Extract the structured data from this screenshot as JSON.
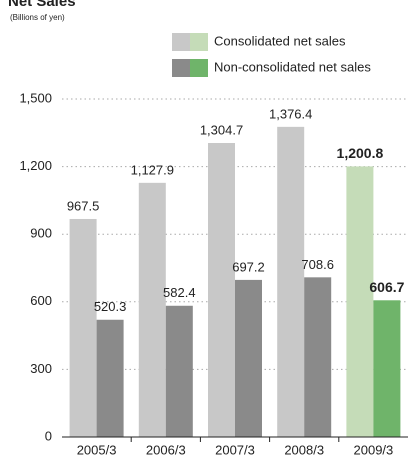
{
  "chart_data": {
    "type": "bar",
    "title": "Net Sales",
    "subtitle": "(Billions of yen)",
    "categories": [
      "2005/3",
      "2006/3",
      "2007/3",
      "2008/3",
      "2009/3"
    ],
    "series": [
      {
        "name": "Consolidated net sales",
        "color": "#c8c8c8",
        "colors": [
          "#c8c8c8",
          "#c8c8c8",
          "#c8c8c8",
          "#c8c8c8",
          "#c5dcb8"
        ],
        "values": [
          967.5,
          1127.9,
          1304.7,
          1376.4,
          1200.8
        ],
        "value_labels": [
          "967.5",
          "1,127.9",
          "1,304.7",
          "1,376.4",
          "1,200.8"
        ]
      },
      {
        "name": "Non-consolidated net sales",
        "color": "#8a8a8a",
        "colors": [
          "#8a8a8a",
          "#8a8a8a",
          "#8a8a8a",
          "#8a8a8a",
          "#6fb46a"
        ],
        "values": [
          520.3,
          582.4,
          697.2,
          708.6,
          606.7
        ],
        "value_labels": [
          "520.3",
          "582.4",
          "697.2",
          "708.6",
          "606.7"
        ]
      }
    ],
    "value_label_bold": [
      false,
      false,
      false,
      false,
      true
    ],
    "ylim": [
      0,
      1500
    ],
    "yticks": [
      0,
      300,
      600,
      900,
      {
        "value": 1200,
        "label": "1,200"
      },
      {
        "value": 1500,
        "label": "1,500"
      }
    ],
    "grid": true
  }
}
